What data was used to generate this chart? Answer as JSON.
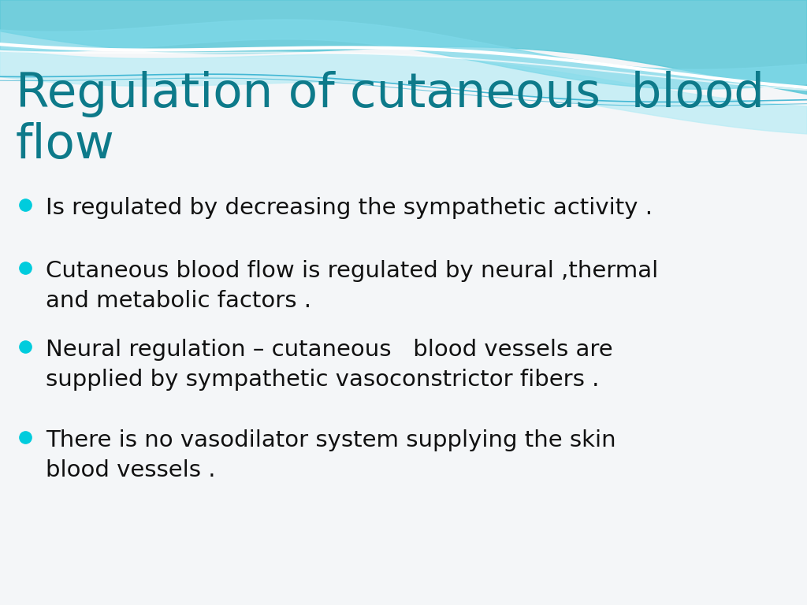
{
  "title_line1": "Regulation of cutaneous  blood",
  "title_line2": "flow",
  "title_color": "#0d7a8a",
  "title_fontsize": 44,
  "bullet_color": "#00ccdd",
  "bullet_text_color": "#111111",
  "bullet_fontsize": 21,
  "bullets": [
    "Is regulated by decreasing the sympathetic activity .",
    "Cutaneous blood flow is regulated by neural ,thermal\nand metabolic factors .",
    "Neural regulation – cutaneous   blood vessels are\nsupplied by sympathetic vasoconstrictor fibers .",
    "There is no vasodilator system supplying the skin\nblood vessels ."
  ],
  "background_color": "#f4f6f8",
  "wave_top_color": "#5bc8d8",
  "wave_mid_color": "#7dd8e8",
  "wave_light_color": "#b8ecf5",
  "wave_white": "#ffffff"
}
